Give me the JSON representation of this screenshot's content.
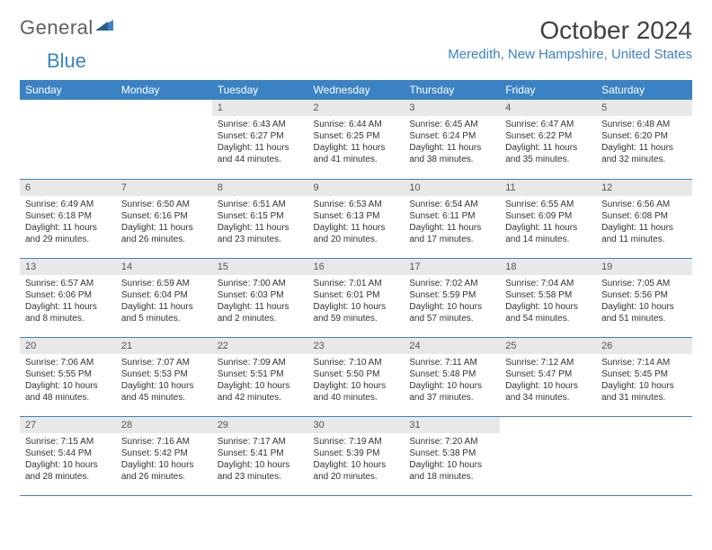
{
  "logo": {
    "text1": "General",
    "text2": "Blue"
  },
  "title": "October 2024",
  "location": "Meredith, New Hampshire, United States",
  "colors": {
    "accent": "#3b82c4",
    "daynum_bg": "#e8e8e8",
    "text": "#333333"
  },
  "weekdays": [
    "Sunday",
    "Monday",
    "Tuesday",
    "Wednesday",
    "Thursday",
    "Friday",
    "Saturday"
  ],
  "weeks": [
    [
      null,
      null,
      {
        "n": "1",
        "sr": "6:43 AM",
        "ss": "6:27 PM",
        "dl": "11 hours and 44 minutes."
      },
      {
        "n": "2",
        "sr": "6:44 AM",
        "ss": "6:25 PM",
        "dl": "11 hours and 41 minutes."
      },
      {
        "n": "3",
        "sr": "6:45 AM",
        "ss": "6:24 PM",
        "dl": "11 hours and 38 minutes."
      },
      {
        "n": "4",
        "sr": "6:47 AM",
        "ss": "6:22 PM",
        "dl": "11 hours and 35 minutes."
      },
      {
        "n": "5",
        "sr": "6:48 AM",
        "ss": "6:20 PM",
        "dl": "11 hours and 32 minutes."
      }
    ],
    [
      {
        "n": "6",
        "sr": "6:49 AM",
        "ss": "6:18 PM",
        "dl": "11 hours and 29 minutes."
      },
      {
        "n": "7",
        "sr": "6:50 AM",
        "ss": "6:16 PM",
        "dl": "11 hours and 26 minutes."
      },
      {
        "n": "8",
        "sr": "6:51 AM",
        "ss": "6:15 PM",
        "dl": "11 hours and 23 minutes."
      },
      {
        "n": "9",
        "sr": "6:53 AM",
        "ss": "6:13 PM",
        "dl": "11 hours and 20 minutes."
      },
      {
        "n": "10",
        "sr": "6:54 AM",
        "ss": "6:11 PM",
        "dl": "11 hours and 17 minutes."
      },
      {
        "n": "11",
        "sr": "6:55 AM",
        "ss": "6:09 PM",
        "dl": "11 hours and 14 minutes."
      },
      {
        "n": "12",
        "sr": "6:56 AM",
        "ss": "6:08 PM",
        "dl": "11 hours and 11 minutes."
      }
    ],
    [
      {
        "n": "13",
        "sr": "6:57 AM",
        "ss": "6:06 PM",
        "dl": "11 hours and 8 minutes."
      },
      {
        "n": "14",
        "sr": "6:59 AM",
        "ss": "6:04 PM",
        "dl": "11 hours and 5 minutes."
      },
      {
        "n": "15",
        "sr": "7:00 AM",
        "ss": "6:03 PM",
        "dl": "11 hours and 2 minutes."
      },
      {
        "n": "16",
        "sr": "7:01 AM",
        "ss": "6:01 PM",
        "dl": "10 hours and 59 minutes."
      },
      {
        "n": "17",
        "sr": "7:02 AM",
        "ss": "5:59 PM",
        "dl": "10 hours and 57 minutes."
      },
      {
        "n": "18",
        "sr": "7:04 AM",
        "ss": "5:58 PM",
        "dl": "10 hours and 54 minutes."
      },
      {
        "n": "19",
        "sr": "7:05 AM",
        "ss": "5:56 PM",
        "dl": "10 hours and 51 minutes."
      }
    ],
    [
      {
        "n": "20",
        "sr": "7:06 AM",
        "ss": "5:55 PM",
        "dl": "10 hours and 48 minutes."
      },
      {
        "n": "21",
        "sr": "7:07 AM",
        "ss": "5:53 PM",
        "dl": "10 hours and 45 minutes."
      },
      {
        "n": "22",
        "sr": "7:09 AM",
        "ss": "5:51 PM",
        "dl": "10 hours and 42 minutes."
      },
      {
        "n": "23",
        "sr": "7:10 AM",
        "ss": "5:50 PM",
        "dl": "10 hours and 40 minutes."
      },
      {
        "n": "24",
        "sr": "7:11 AM",
        "ss": "5:48 PM",
        "dl": "10 hours and 37 minutes."
      },
      {
        "n": "25",
        "sr": "7:12 AM",
        "ss": "5:47 PM",
        "dl": "10 hours and 34 minutes."
      },
      {
        "n": "26",
        "sr": "7:14 AM",
        "ss": "5:45 PM",
        "dl": "10 hours and 31 minutes."
      }
    ],
    [
      {
        "n": "27",
        "sr": "7:15 AM",
        "ss": "5:44 PM",
        "dl": "10 hours and 28 minutes."
      },
      {
        "n": "28",
        "sr": "7:16 AM",
        "ss": "5:42 PM",
        "dl": "10 hours and 26 minutes."
      },
      {
        "n": "29",
        "sr": "7:17 AM",
        "ss": "5:41 PM",
        "dl": "10 hours and 23 minutes."
      },
      {
        "n": "30",
        "sr": "7:19 AM",
        "ss": "5:39 PM",
        "dl": "10 hours and 20 minutes."
      },
      {
        "n": "31",
        "sr": "7:20 AM",
        "ss": "5:38 PM",
        "dl": "10 hours and 18 minutes."
      },
      null,
      null
    ]
  ],
  "labels": {
    "sunrise": "Sunrise:",
    "sunset": "Sunset:",
    "daylight": "Daylight:"
  }
}
